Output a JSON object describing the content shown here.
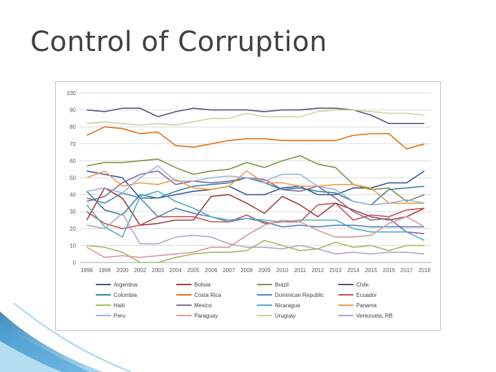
{
  "slide": {
    "title": "Control of Corruption"
  },
  "chart_data": {
    "type": "line",
    "title": "",
    "xlabel": "",
    "ylabel": "",
    "ylim": [
      0,
      100
    ],
    "yticks": [
      0,
      10,
      20,
      30,
      40,
      50,
      60,
      70,
      80,
      90,
      100
    ],
    "x": [
      "1996",
      "1998",
      "2000",
      "2002",
      "2003",
      "2004",
      "2005",
      "2006",
      "2007",
      "2008",
      "2009",
      "2010",
      "2011",
      "2012",
      "2013",
      "2014",
      "2015",
      "2016",
      "2017",
      "2018"
    ],
    "legend_position": "bottom",
    "series": [
      {
        "name": "Argentina",
        "color": "#2f5597",
        "values": [
          54,
          52,
          50,
          38,
          38,
          40,
          42,
          43,
          45,
          40,
          40,
          44,
          45,
          40,
          40,
          44,
          44,
          47,
          47,
          54
        ]
      },
      {
        "name": "Bolivia",
        "color": "#9e3b37",
        "values": [
          25,
          44,
          38,
          22,
          23,
          25,
          25,
          39,
          40,
          35,
          29,
          39,
          34,
          27,
          35,
          31,
          27,
          25,
          27,
          32
        ]
      },
      {
        "name": "Brazil",
        "color": "#77933c",
        "values": [
          57,
          59,
          59,
          60,
          61,
          56,
          52,
          54,
          55,
          59,
          56,
          60,
          63,
          58,
          56,
          46,
          43,
          44,
          36,
          40
        ]
      },
      {
        "name": "Chile",
        "color": "#5b4a7c",
        "values": [
          90,
          89,
          91,
          91,
          86,
          89,
          91,
          90,
          90,
          90,
          89,
          90,
          90,
          91,
          91,
          90,
          87,
          82,
          82,
          82
        ]
      },
      {
        "name": "Colombia",
        "color": "#31849b",
        "values": [
          42,
          31,
          28,
          40,
          38,
          42,
          45,
          46,
          47,
          50,
          47,
          43,
          44,
          42,
          41,
          36,
          34,
          43,
          44,
          45
        ]
      },
      {
        "name": "Costa Rica",
        "color": "#e46c0a",
        "values": [
          75,
          80,
          79,
          76,
          77,
          69,
          68,
          70,
          72,
          73,
          73,
          72,
          72,
          72,
          72,
          75,
          76,
          76,
          67,
          70
        ]
      },
      {
        "name": "Dominican Republic",
        "color": "#4f81bd",
        "values": [
          38,
          35,
          41,
          38,
          27,
          32,
          29,
          27,
          24,
          26,
          24,
          21,
          22,
          21,
          22,
          22,
          21,
          21,
          21,
          21
        ]
      },
      {
        "name": "Ecuador",
        "color": "#c0504d",
        "values": [
          30,
          23,
          20,
          22,
          27,
          27,
          27,
          24,
          24,
          28,
          23,
          24,
          24,
          34,
          35,
          25,
          28,
          27,
          31,
          32
        ]
      },
      {
        "name": "Haiti",
        "color": "#9bbb59",
        "values": [
          10,
          9,
          6,
          0,
          0,
          3,
          5,
          6,
          6,
          7,
          13,
          10,
          7,
          8,
          12,
          9,
          10,
          7,
          10,
          10
        ]
      },
      {
        "name": "Mexico",
        "color": "#8064a2",
        "values": [
          36,
          39,
          47,
          52,
          54,
          46,
          48,
          47,
          48,
          50,
          49,
          43,
          42,
          45,
          38,
          30,
          25,
          26,
          18,
          17
        ]
      },
      {
        "name": "Nicaragua",
        "color": "#4bacc6",
        "values": [
          34,
          21,
          15,
          39,
          42,
          36,
          32,
          27,
          25,
          26,
          25,
          24,
          25,
          25,
          25,
          20,
          18,
          18,
          18,
          13
        ]
      },
      {
        "name": "Panama",
        "color": "#f79646",
        "values": [
          50,
          54,
          45,
          47,
          46,
          49,
          44,
          43,
          45,
          54,
          47,
          47,
          45,
          45,
          46,
          46,
          44,
          35,
          35,
          35
        ]
      },
      {
        "name": "Peru",
        "color": "#95b3d7",
        "values": [
          42,
          44,
          41,
          50,
          57,
          48,
          48,
          50,
          51,
          50,
          48,
          52,
          52,
          45,
          43,
          36,
          34,
          35,
          37,
          35
        ]
      },
      {
        "name": "Paraguay",
        "color": "#d99694",
        "values": [
          9,
          3,
          4,
          3,
          4,
          5,
          6,
          9,
          9,
          16,
          22,
          25,
          24,
          19,
          15,
          15,
          16,
          23,
          27,
          21
        ]
      },
      {
        "name": "Uruguay",
        "color": "#c3d69b",
        "values": [
          82,
          83,
          82,
          81,
          82,
          81,
          83,
          85,
          85,
          88,
          86,
          86,
          86,
          89,
          90,
          90,
          89,
          88,
          88,
          87
        ]
      },
      {
        "name": "Venezuela, RB",
        "color": "#b3a2c7",
        "values": [
          22,
          20,
          29,
          11,
          11,
          15,
          16,
          15,
          11,
          9,
          9,
          8,
          10,
          8,
          5,
          6,
          5,
          6,
          6,
          5
        ]
      }
    ]
  }
}
